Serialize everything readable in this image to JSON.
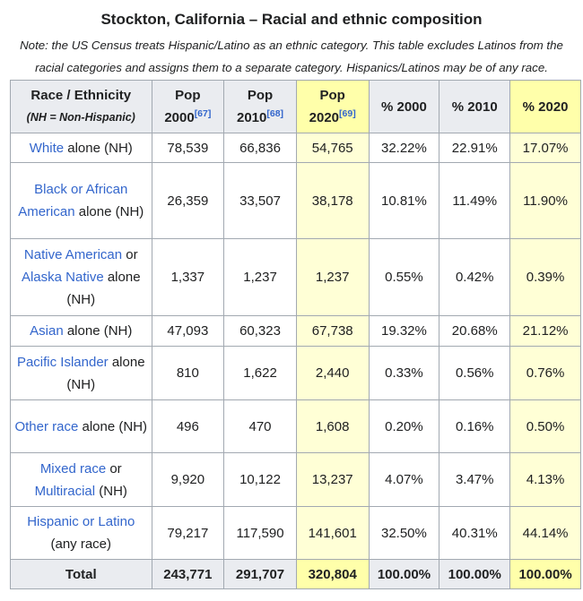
{
  "caption": "Stockton, California – Racial and ethnic composition",
  "note": "Note: the US Census treats Hispanic/Latino as an ethnic category. This table excludes Latinos from the racial categories and assigns them to a separate category. Hispanics/Latinos may be of any race.",
  "headers": {
    "race": "Race / Ethnicity",
    "race_sub": "(NH = Non-Hispanic)",
    "pop2000": "Pop 2000",
    "pop2000_ref": "[67]",
    "pop2010": "Pop 2010",
    "pop2010_ref": "[68]",
    "pop2020": "Pop 2020",
    "pop2020_ref": "[69]",
    "pct2000": "% 2000",
    "pct2010": "% 2010",
    "pct2020": "% 2020"
  },
  "rows": [
    {
      "link": "White",
      "suffix": " alone (NH)",
      "p2000": "78,539",
      "p2010": "66,836",
      "p2020": "54,765",
      "c2000": "32.22%",
      "c2010": "22.91%",
      "c2020": "17.07%"
    },
    {
      "link": "Black or African American",
      "suffix": " alone (NH)",
      "p2000": "26,359",
      "p2010": "33,507",
      "p2020": "38,178",
      "c2000": "10.81%",
      "c2010": "11.49%",
      "c2020": "11.90%"
    },
    {
      "link": "Native American",
      "link2": "Alaska Native",
      "mid": " or ",
      "suffix": " alone (NH)",
      "p2000": "1,337",
      "p2010": "1,237",
      "p2020": "1,237",
      "c2000": "0.55%",
      "c2010": "0.42%",
      "c2020": "0.39%"
    },
    {
      "link": "Asian",
      "suffix": " alone (NH)",
      "p2000": "47,093",
      "p2010": "60,323",
      "p2020": "67,738",
      "c2000": "19.32%",
      "c2010": "20.68%",
      "c2020": "21.12%"
    },
    {
      "link": "Pacific Islander",
      "suffix": " alone (NH)",
      "p2000": "810",
      "p2010": "1,622",
      "p2020": "2,440",
      "c2000": "0.33%",
      "c2010": "0.56%",
      "c2020": "0.76%"
    },
    {
      "link": "Other race",
      "suffix": " alone (NH)",
      "p2000": "496",
      "p2010": "470",
      "p2020": "1,608",
      "c2000": "0.20%",
      "c2010": "0.16%",
      "c2020": "0.50%"
    },
    {
      "link": "Mixed race",
      "link2": "Multiracial",
      "mid": " or ",
      "suffix": " (NH)",
      "p2000": "9,920",
      "p2010": "10,122",
      "p2020": "13,237",
      "c2000": "4.07%",
      "c2010": "3.47%",
      "c2020": "4.13%"
    },
    {
      "link": "Hispanic or Latino",
      "suffix": " (any race)",
      "p2000": "79,217",
      "p2010": "117,590",
      "p2020": "141,601",
      "c2000": "32.50%",
      "c2010": "40.31%",
      "c2020": "44.14%"
    }
  ],
  "total": {
    "label": "Total",
    "p2000": "243,771",
    "p2010": "291,707",
    "p2020": "320,804",
    "c2000": "100.00%",
    "c2010": "100.00%",
    "c2020": "100.00%"
  }
}
